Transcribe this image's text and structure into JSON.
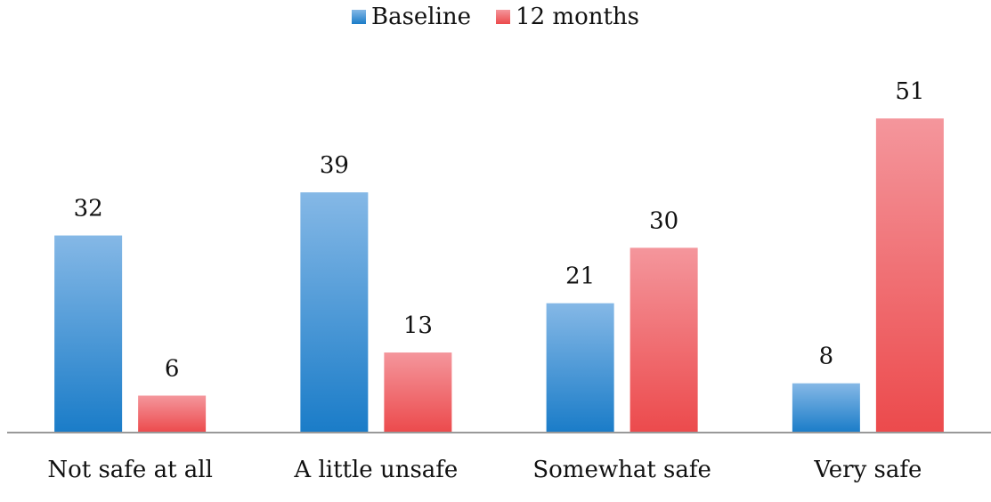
{
  "chart_data": {
    "type": "bar",
    "title": "",
    "xlabel": "",
    "ylabel": "",
    "categories": [
      "Not safe at all",
      "A little unsafe",
      "Somewhat safe",
      "Very safe"
    ],
    "series": [
      {
        "name": "Baseline",
        "values": [
          32,
          39,
          21,
          8
        ],
        "color_top": "#85b8e6",
        "color_bottom": "#1a7cc8"
      },
      {
        "name": "12 months",
        "values": [
          6,
          13,
          30,
          51
        ],
        "color_top": "#f4969c",
        "color_bottom": "#ec4a4c"
      }
    ],
    "ylim": [
      0,
      60
    ],
    "grid": false,
    "legend_position": "top-center",
    "data_labels": true
  },
  "colors": {
    "axis_line": "#999999"
  }
}
